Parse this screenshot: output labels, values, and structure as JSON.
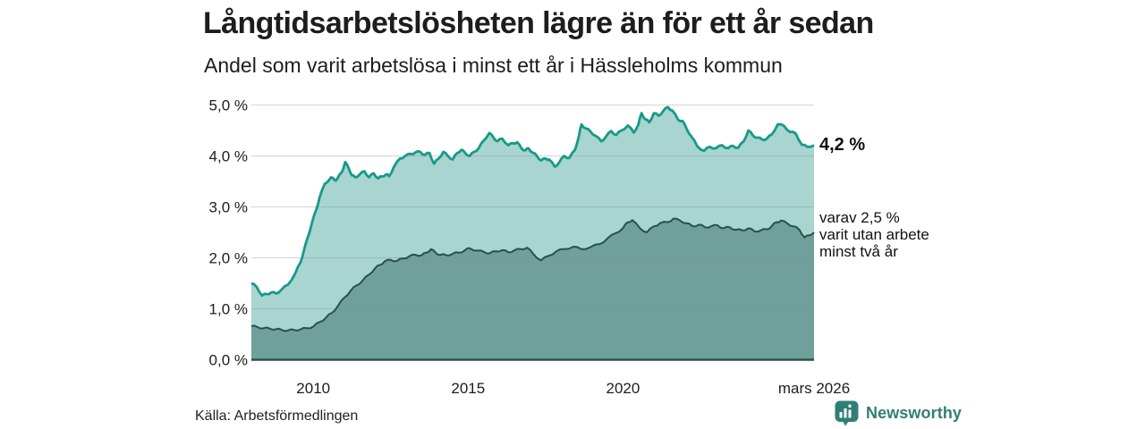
{
  "header": {
    "title": "Långtidsarbetslösheten lägre än för ett år sedan",
    "subtitle": "Andel som varit arbetslösa i minst ett år i Hässleholms kommun"
  },
  "annotations": {
    "total_label": "4,2 %",
    "detail_line1": "varav 2,5 %",
    "detail_line2": "varit utan arbete",
    "detail_line3": "minst två år"
  },
  "footer": {
    "source": "Källa: Arbetsförmedlingen",
    "logo_text": "Newsworthy"
  },
  "chart_data": {
    "type": "area",
    "title": "Långtidsarbetslösheten lägre än för ett år sedan",
    "subtitle": "Andel som varit arbetslösa i minst ett år i Hässleholms kommun",
    "xlabel": "",
    "ylabel": "",
    "xlim": [
      2008.0,
      2026.17
    ],
    "ylim": [
      0,
      5
    ],
    "grid": "horizontal",
    "legend_position": "right-annotations",
    "x_ticks": [
      {
        "v": 2010,
        "label": "2010"
      },
      {
        "v": 2015,
        "label": "2015"
      },
      {
        "v": 2020,
        "label": "2020"
      },
      {
        "v": 2026.17,
        "label": "mars 2026"
      }
    ],
    "y_ticks": [
      {
        "v": 0,
        "label": "0,0 %"
      },
      {
        "v": 1,
        "label": "1,0 %"
      },
      {
        "v": 2,
        "label": "2,0 %"
      },
      {
        "v": 3,
        "label": "3,0 %"
      },
      {
        "v": 4,
        "label": "4,0 %"
      },
      {
        "v": 5,
        "label": "5,0 %"
      }
    ],
    "colors": {
      "grid": "#8f8f8f",
      "baseline": "#2c544e",
      "text": "#1d1d1d"
    },
    "series": [
      {
        "name": "Arbetslösa minst ett år",
        "end_label": "4,2 %",
        "end_value": 4.2,
        "fill": "#a8d5cf",
        "stroke": "#17998a",
        "points": [
          [
            2008.0,
            1.5
          ],
          [
            2008.17,
            1.43
          ],
          [
            2008.35,
            1.26
          ],
          [
            2008.5,
            1.29
          ],
          [
            2008.64,
            1.32
          ],
          [
            2008.8,
            1.3
          ],
          [
            2008.98,
            1.38
          ],
          [
            2009.18,
            1.47
          ],
          [
            2009.42,
            1.7
          ],
          [
            2009.58,
            1.9
          ],
          [
            2009.7,
            2.15
          ],
          [
            2009.85,
            2.45
          ],
          [
            2009.96,
            2.7
          ],
          [
            2010.1,
            2.95
          ],
          [
            2010.2,
            3.18
          ],
          [
            2010.37,
            3.45
          ],
          [
            2010.57,
            3.58
          ],
          [
            2010.7,
            3.52
          ],
          [
            2010.77,
            3.55
          ],
          [
            2010.92,
            3.68
          ],
          [
            2011.03,
            3.88
          ],
          [
            2011.15,
            3.75
          ],
          [
            2011.25,
            3.62
          ],
          [
            2011.35,
            3.58
          ],
          [
            2011.5,
            3.64
          ],
          [
            2011.65,
            3.7
          ],
          [
            2011.8,
            3.58
          ],
          [
            2011.95,
            3.66
          ],
          [
            2012.1,
            3.56
          ],
          [
            2012.22,
            3.6
          ],
          [
            2012.35,
            3.64
          ],
          [
            2012.45,
            3.6
          ],
          [
            2012.6,
            3.78
          ],
          [
            2012.8,
            3.95
          ],
          [
            2012.97,
            4.0
          ],
          [
            2013.15,
            4.04
          ],
          [
            2013.3,
            4.07
          ],
          [
            2013.45,
            4.08
          ],
          [
            2013.6,
            4.02
          ],
          [
            2013.75,
            4.06
          ],
          [
            2013.9,
            3.85
          ],
          [
            2014.05,
            3.95
          ],
          [
            2014.2,
            4.08
          ],
          [
            2014.35,
            4.0
          ],
          [
            2014.5,
            3.93
          ],
          [
            2014.65,
            4.06
          ],
          [
            2014.78,
            4.12
          ],
          [
            2014.9,
            4.06
          ],
          [
            2015.05,
            4.0
          ],
          [
            2015.2,
            4.08
          ],
          [
            2015.35,
            4.16
          ],
          [
            2015.5,
            4.3
          ],
          [
            2015.68,
            4.45
          ],
          [
            2015.82,
            4.36
          ],
          [
            2015.95,
            4.29
          ],
          [
            2016.1,
            4.34
          ],
          [
            2016.3,
            4.21
          ],
          [
            2016.45,
            4.25
          ],
          [
            2016.58,
            4.27
          ],
          [
            2016.72,
            4.15
          ],
          [
            2016.85,
            4.11
          ],
          [
            2016.95,
            4.15
          ],
          [
            2017.1,
            4.06
          ],
          [
            2017.22,
            4.0
          ],
          [
            2017.36,
            3.91
          ],
          [
            2017.5,
            3.95
          ],
          [
            2017.62,
            3.93
          ],
          [
            2017.8,
            3.79
          ],
          [
            2017.95,
            3.88
          ],
          [
            2018.1,
            4.0
          ],
          [
            2018.27,
            3.96
          ],
          [
            2018.45,
            4.12
          ],
          [
            2018.58,
            4.4
          ],
          [
            2018.66,
            4.62
          ],
          [
            2018.8,
            4.54
          ],
          [
            2018.95,
            4.48
          ],
          [
            2019.1,
            4.4
          ],
          [
            2019.3,
            4.29
          ],
          [
            2019.45,
            4.38
          ],
          [
            2019.62,
            4.49
          ],
          [
            2019.78,
            4.41
          ],
          [
            2019.95,
            4.5
          ],
          [
            2020.16,
            4.6
          ],
          [
            2020.35,
            4.46
          ],
          [
            2020.5,
            4.62
          ],
          [
            2020.6,
            4.84
          ],
          [
            2020.72,
            4.72
          ],
          [
            2020.85,
            4.66
          ],
          [
            2021.0,
            4.84
          ],
          [
            2021.15,
            4.79
          ],
          [
            2021.3,
            4.88
          ],
          [
            2021.45,
            4.96
          ],
          [
            2021.6,
            4.89
          ],
          [
            2021.78,
            4.71
          ],
          [
            2021.92,
            4.69
          ],
          [
            2022.05,
            4.54
          ],
          [
            2022.2,
            4.39
          ],
          [
            2022.4,
            4.19
          ],
          [
            2022.62,
            4.1
          ],
          [
            2022.8,
            4.18
          ],
          [
            2023.0,
            4.15
          ],
          [
            2023.2,
            4.21
          ],
          [
            2023.4,
            4.15
          ],
          [
            2023.55,
            4.2
          ],
          [
            2023.72,
            4.16
          ],
          [
            2023.9,
            4.29
          ],
          [
            2024.05,
            4.5
          ],
          [
            2024.2,
            4.4
          ],
          [
            2024.35,
            4.36
          ],
          [
            2024.5,
            4.32
          ],
          [
            2024.65,
            4.34
          ],
          [
            2024.8,
            4.42
          ],
          [
            2025.0,
            4.62
          ],
          [
            2025.2,
            4.59
          ],
          [
            2025.4,
            4.47
          ],
          [
            2025.58,
            4.44
          ],
          [
            2025.78,
            4.22
          ],
          [
            2025.95,
            4.18
          ],
          [
            2026.17,
            4.21
          ]
        ]
      },
      {
        "name": "varav utan arbete minst två år",
        "end_label": "varav 2,5 % varit utan arbete minst två år",
        "end_value": 2.5,
        "fill": "#6fa09b",
        "stroke": "#26524c",
        "points": [
          [
            2008.0,
            0.66
          ],
          [
            2008.2,
            0.64
          ],
          [
            2008.4,
            0.62
          ],
          [
            2008.6,
            0.61
          ],
          [
            2008.8,
            0.6
          ],
          [
            2009.0,
            0.58
          ],
          [
            2009.2,
            0.58
          ],
          [
            2009.4,
            0.58
          ],
          [
            2009.6,
            0.6
          ],
          [
            2009.8,
            0.62
          ],
          [
            2010.0,
            0.65
          ],
          [
            2010.2,
            0.74
          ],
          [
            2010.4,
            0.82
          ],
          [
            2010.6,
            0.92
          ],
          [
            2010.8,
            1.06
          ],
          [
            2011.0,
            1.22
          ],
          [
            2011.2,
            1.35
          ],
          [
            2011.4,
            1.46
          ],
          [
            2011.6,
            1.56
          ],
          [
            2011.8,
            1.67
          ],
          [
            2012.0,
            1.8
          ],
          [
            2012.15,
            1.86
          ],
          [
            2012.3,
            1.93
          ],
          [
            2012.5,
            1.96
          ],
          [
            2012.7,
            1.94
          ],
          [
            2012.9,
            1.99
          ],
          [
            2013.1,
            2.03
          ],
          [
            2013.3,
            2.06
          ],
          [
            2013.5,
            2.05
          ],
          [
            2013.65,
            2.1
          ],
          [
            2013.8,
            2.17
          ],
          [
            2013.95,
            2.1
          ],
          [
            2014.1,
            2.06
          ],
          [
            2014.3,
            2.05
          ],
          [
            2014.5,
            2.08
          ],
          [
            2014.7,
            2.1
          ],
          [
            2014.9,
            2.15
          ],
          [
            2015.05,
            2.19
          ],
          [
            2015.3,
            2.14
          ],
          [
            2015.5,
            2.12
          ],
          [
            2015.7,
            2.09
          ],
          [
            2015.9,
            2.13
          ],
          [
            2016.1,
            2.15
          ],
          [
            2016.3,
            2.11
          ],
          [
            2016.5,
            2.15
          ],
          [
            2016.7,
            2.17
          ],
          [
            2016.9,
            2.2
          ],
          [
            2017.1,
            2.08
          ],
          [
            2017.35,
            1.95
          ],
          [
            2017.6,
            2.04
          ],
          [
            2017.85,
            2.13
          ],
          [
            2018.1,
            2.17
          ],
          [
            2018.4,
            2.22
          ],
          [
            2018.65,
            2.17
          ],
          [
            2018.95,
            2.21
          ],
          [
            2019.25,
            2.27
          ],
          [
            2019.5,
            2.38
          ],
          [
            2019.75,
            2.48
          ],
          [
            2020.0,
            2.58
          ],
          [
            2020.15,
            2.7
          ],
          [
            2020.3,
            2.74
          ],
          [
            2020.55,
            2.58
          ],
          [
            2020.77,
            2.5
          ],
          [
            2021.0,
            2.62
          ],
          [
            2021.2,
            2.68
          ],
          [
            2021.45,
            2.7
          ],
          [
            2021.63,
            2.77
          ],
          [
            2021.85,
            2.73
          ],
          [
            2022.05,
            2.68
          ],
          [
            2022.25,
            2.62
          ],
          [
            2022.45,
            2.65
          ],
          [
            2022.65,
            2.6
          ],
          [
            2022.85,
            2.62
          ],
          [
            2023.05,
            2.64
          ],
          [
            2023.25,
            2.58
          ],
          [
            2023.45,
            2.6
          ],
          [
            2023.65,
            2.55
          ],
          [
            2023.85,
            2.54
          ],
          [
            2024.05,
            2.58
          ],
          [
            2024.25,
            2.52
          ],
          [
            2024.45,
            2.54
          ],
          [
            2024.65,
            2.56
          ],
          [
            2024.8,
            2.62
          ],
          [
            2024.95,
            2.7
          ],
          [
            2025.1,
            2.73
          ],
          [
            2025.3,
            2.68
          ],
          [
            2025.5,
            2.62
          ],
          [
            2025.7,
            2.55
          ],
          [
            2025.87,
            2.4
          ],
          [
            2026.0,
            2.44
          ],
          [
            2026.17,
            2.5
          ]
        ]
      }
    ]
  }
}
